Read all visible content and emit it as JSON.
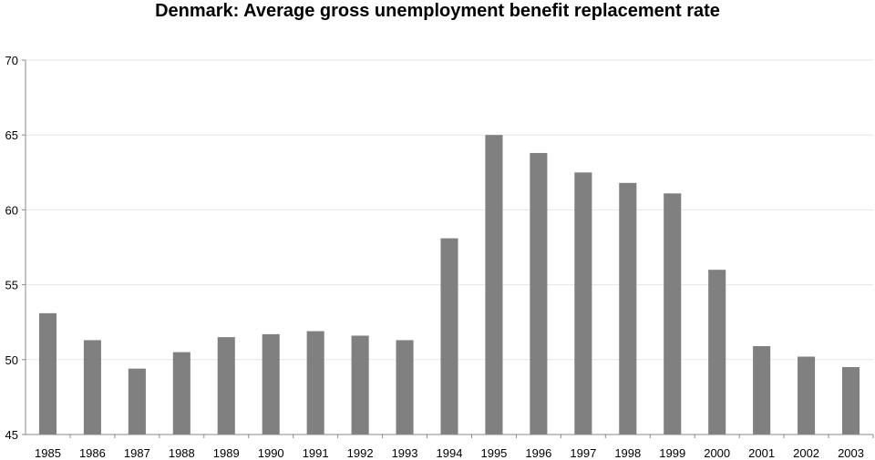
{
  "chart_data": {
    "type": "bar",
    "title": "Denmark: Average gross unemployment benefit  replacement rate",
    "xlabel": "",
    "ylabel": "",
    "categories": [
      "1985",
      "1986",
      "1987",
      "1988",
      "1989",
      "1990",
      "1991",
      "1992",
      "1993",
      "1994",
      "1995",
      "1996",
      "1997",
      "1998",
      "1999",
      "2000",
      "2001",
      "2002",
      "2003"
    ],
    "values": [
      53.1,
      51.3,
      49.4,
      50.5,
      51.5,
      51.7,
      51.9,
      51.6,
      51.3,
      58.1,
      65.0,
      63.8,
      62.5,
      61.8,
      61.1,
      56.0,
      50.9,
      50.2,
      49.5
    ],
    "ylim": [
      45,
      70
    ],
    "yticks": [
      "45",
      "50",
      "55",
      "60",
      "65",
      "70"
    ],
    "grid": true,
    "legend": "none",
    "bar_color": "#808080",
    "grid_color": "#e6e6e6",
    "axis_color": "#888888"
  }
}
